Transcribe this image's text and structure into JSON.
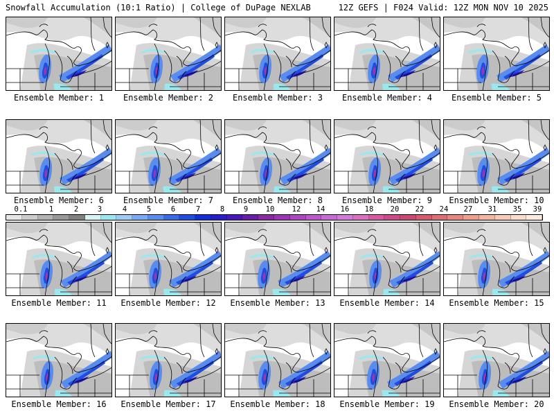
{
  "header": {
    "left": "Snowfall Accumulation (10:1 Ratio) | College of DuPage NEXLAB",
    "right": "12Z GEFS | F024 Valid: 12Z MON NOV 10 2025"
  },
  "panels": [
    {
      "label": "Ensemble Member: 1"
    },
    {
      "label": "Ensemble Member: 2"
    },
    {
      "label": "Ensemble Member: 3"
    },
    {
      "label": "Ensemble Member: 4"
    },
    {
      "label": "Ensemble Member: 5"
    },
    {
      "label": "Ensemble Member: 6"
    },
    {
      "label": "Ensemble Member: 7"
    },
    {
      "label": "Ensemble Member: 8"
    },
    {
      "label": "Ensemble Member: 9"
    },
    {
      "label": "Ensemble Member: 10"
    },
    {
      "label": "Ensemble Member: 11"
    },
    {
      "label": "Ensemble Member: 12"
    },
    {
      "label": "Ensemble Member: 13"
    },
    {
      "label": "Ensemble Member: 14"
    },
    {
      "label": "Ensemble Member: 15"
    },
    {
      "label": "Ensemble Member: 16"
    },
    {
      "label": "Ensemble Member: 17"
    },
    {
      "label": "Ensemble Member: 18"
    },
    {
      "label": "Ensemble Member: 19"
    },
    {
      "label": "Ensemble Member: 20"
    }
  ],
  "legend": {
    "ticks": [
      "0.1",
      "1",
      "2",
      "3",
      "4",
      "5",
      "6",
      "7",
      "8",
      "9",
      "10",
      "12",
      "14",
      "16",
      "18",
      "20",
      "22",
      "24",
      "27",
      "31",
      "35",
      "39"
    ],
    "colors": [
      "#e6e6e6",
      "#cccccc",
      "#b3b3b3",
      "#999999",
      "#808080",
      "#d8f2f2",
      "#9be7ee",
      "#9ecbf5",
      "#79aaf2",
      "#5a8ced",
      "#3a6be6",
      "#1f4de0",
      "#1030d6",
      "#2a1cc8",
      "#4a18b8",
      "#6a1ea8",
      "#8a2aa0",
      "#9b36b0",
      "#ad46c0",
      "#bc58cc",
      "#c86ad6",
      "#d27ad8",
      "#d870c0",
      "#d65aa0",
      "#cc4a88",
      "#c84a74",
      "#d45a6e",
      "#dc6e76",
      "#e4887e",
      "#eca08c",
      "#f2b6a0",
      "#f6cab4",
      "#fadccc",
      "#fde9dd"
    ]
  }
}
